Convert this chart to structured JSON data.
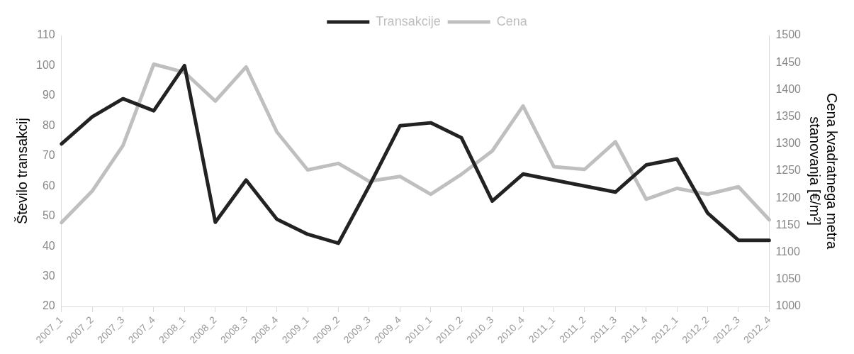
{
  "chart_data": {
    "type": "line",
    "categories": [
      "2007_1",
      "2007_2",
      "2007_3",
      "2007_4",
      "2008_1",
      "2008_2",
      "2008_3",
      "2008_4",
      "2009_1",
      "2009_2",
      "2009_3",
      "2009_4",
      "2010_1",
      "2010_2",
      "2010_3",
      "2010_4",
      "2011_1",
      "2011_2",
      "2011_3",
      "2011_4",
      "2012_1",
      "2012_2",
      "2012_3",
      "2012_4"
    ],
    "series": [
      {
        "name": "Transakcije",
        "color": "#222222",
        "values": [
          74,
          83,
          89,
          85,
          100,
          48,
          62,
          49,
          44,
          41,
          60,
          80,
          81,
          76,
          55,
          64,
          62,
          60,
          58,
          67,
          69,
          51,
          42,
          42
        ]
      },
      {
        "name": "Cena",
        "color": "#bfbfbf",
        "axis": "y2",
        "values": [
          1155,
          1213,
          1297,
          1447,
          1432,
          1379,
          1442,
          1322,
          1252,
          1264,
          1231,
          1240,
          1207,
          1244,
          1287,
          1370,
          1258,
          1253,
          1304,
          1198,
          1218,
          1207,
          1221,
          1160
        ]
      }
    ],
    "ylabel": "Število transakcij",
    "y2label": "Cena kvadratnega metra stanovanja [€/m²]",
    "ylim": [
      20,
      110
    ],
    "yticks": [
      20,
      30,
      40,
      50,
      60,
      70,
      80,
      90,
      100,
      110
    ],
    "y2lim": [
      1000,
      1500
    ],
    "y2ticks": [
      1000,
      1050,
      1100,
      1150,
      1200,
      1250,
      1300,
      1350,
      1400,
      1450,
      1500
    ],
    "grid": false,
    "legend": "top",
    "marker": "none",
    "line_style": "solid"
  }
}
